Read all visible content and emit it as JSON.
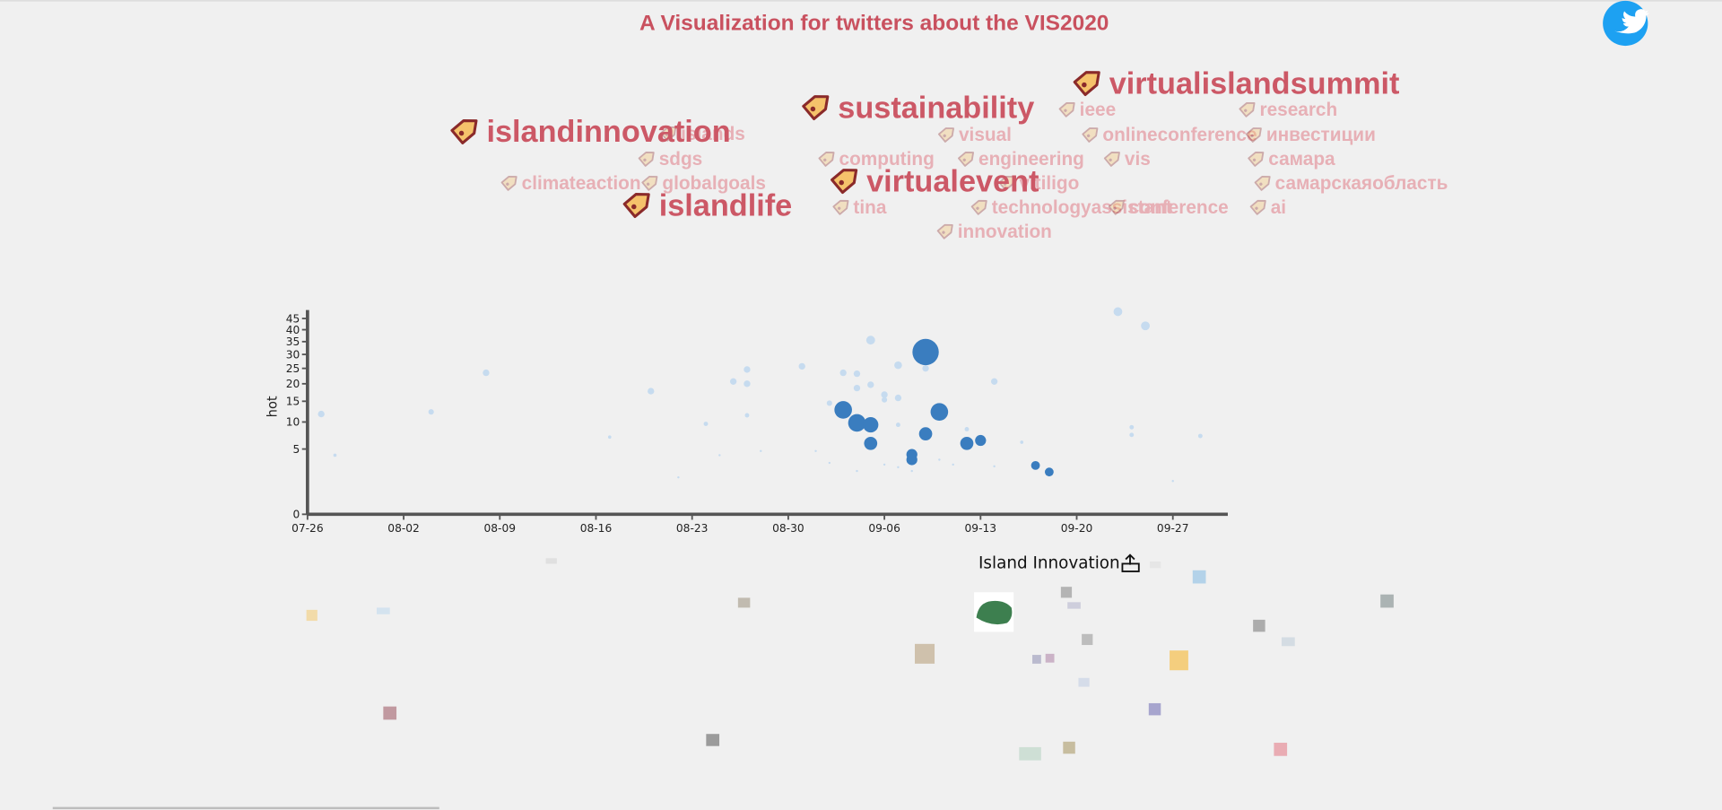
{
  "title": "A Visualization for twitters about the VIS2020",
  "top_tags": [
    "virtualislandsummit",
    "sustainability",
    "islandinnovation",
    "virtualevent",
    "islandlife"
  ],
  "tags": [
    "ieee",
    "research",
    "islands",
    "visual",
    "onlineconference",
    "инвестиции",
    "sdgs",
    "computing",
    "engineering",
    "vis",
    "самара",
    "climateaction",
    "globalgoals",
    "vitiligo",
    "самарскаяобласть",
    "tina",
    "technologyassistant",
    "conference",
    "ai",
    "innovation"
  ],
  "user": "Island Innovation",
  "chart_data": {
    "type": "scatter",
    "y_label": "hot",
    "y_scale": "sqrt",
    "xlim": [
      "07-26",
      "10-01"
    ],
    "xticks": [
      "07-26",
      "08-02",
      "08-09",
      "08-16",
      "08-23",
      "08-30",
      "09-06",
      "09-13",
      "09-20",
      "09-27"
    ],
    "ylim": [
      0,
      49
    ],
    "yticks": [
      0,
      5,
      10,
      15,
      20,
      25,
      30,
      35,
      40,
      45
    ],
    "series": [
      {
        "color": "#c6dbef",
        "x": [
          "07-27",
          "07-28",
          "08-04",
          "08-08",
          "08-17",
          "08-20",
          "08-24",
          "08-26",
          "08-27",
          "08-27",
          "08-27",
          "08-31",
          "09-02",
          "09-03",
          "09-04",
          "09-04",
          "09-05",
          "09-05",
          "09-06",
          "09-06",
          "09-07",
          "09-07",
          "09-07",
          "09-09",
          "09-14",
          "09-12",
          "09-16",
          "09-23",
          "09-25",
          "09-24",
          "09-24",
          "09-29",
          "08-25",
          "08-28",
          "09-01",
          "09-02",
          "09-04",
          "09-06",
          "09-07",
          "09-08",
          "09-10",
          "09-11",
          "09-14",
          "09-27",
          "08-22"
        ],
        "values": [
          11.8,
          4.1,
          12.3,
          23.5,
          7.0,
          17.8,
          9.6,
          20.7,
          24.6,
          20.0,
          11.5,
          25.7,
          14.5,
          23.5,
          23.2,
          18.7,
          35.6,
          19.7,
          15.4,
          16.8,
          26.1,
          15.9,
          9.4,
          25.0,
          20.7,
          8.5,
          6.1,
          48.2,
          41.7,
          8.9,
          7.4,
          7.2,
          4.1,
          4.7,
          4.7,
          3.1,
          2.2,
          2.9,
          2.6,
          2.2,
          3.5,
          2.9,
          2.7,
          1.3,
          1.6
        ],
        "sizes": [
          3,
          1.5,
          2.5,
          3,
          1.5,
          3,
          2,
          3,
          3,
          3,
          2,
          3,
          2.5,
          3,
          3,
          3,
          4,
          3,
          2.5,
          3,
          3.5,
          3,
          2,
          3,
          3,
          2,
          1.5,
          4,
          4,
          2,
          2,
          2,
          1,
          1,
          1,
          1,
          1,
          1,
          1,
          1,
          1,
          1,
          1,
          1,
          1
        ]
      },
      {
        "color": "#3a7dbf",
        "x": [
          "09-09",
          "09-03",
          "09-04",
          "09-05",
          "09-10",
          "09-09",
          "09-05",
          "09-08",
          "09-08",
          "09-12",
          "09-13",
          "09-17",
          "09-18"
        ],
        "values": [
          30.9,
          12.8,
          9.8,
          9.4,
          12.3,
          7.6,
          5.9,
          4.2,
          3.5,
          5.9,
          6.4,
          2.8,
          2.1
        ],
        "sizes": [
          12,
          8,
          8,
          7,
          8,
          6,
          6,
          5,
          5,
          6,
          5,
          4,
          4
        ]
      }
    ]
  }
}
